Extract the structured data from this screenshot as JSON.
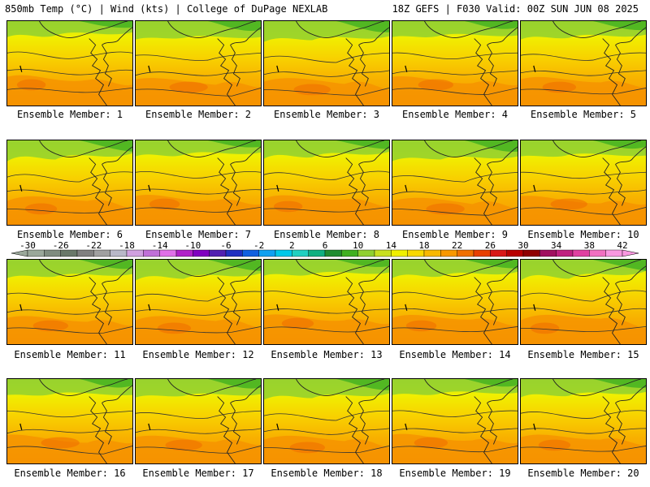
{
  "header": {
    "left_title": "850mb Temp (°C) | Wind (kts) | College of DuPage NEXLAB",
    "right_title": "18Z GEFS | F030 Valid: 00Z SUN JUN 08 2025"
  },
  "panels": [
    {
      "label": "Ensemble Member: 1"
    },
    {
      "label": "Ensemble Member: 2"
    },
    {
      "label": "Ensemble Member: 3"
    },
    {
      "label": "Ensemble Member: 4"
    },
    {
      "label": "Ensemble Member: 5"
    },
    {
      "label": "Ensemble Member: 6"
    },
    {
      "label": "Ensemble Member: 7"
    },
    {
      "label": "Ensemble Member: 8"
    },
    {
      "label": "Ensemble Member: 9"
    },
    {
      "label": "Ensemble Member: 10"
    },
    {
      "label": "Ensemble Member: 11"
    },
    {
      "label": "Ensemble Member: 12"
    },
    {
      "label": "Ensemble Member: 13"
    },
    {
      "label": "Ensemble Member: 14"
    },
    {
      "label": "Ensemble Member: 15"
    },
    {
      "label": "Ensemble Member: 16"
    },
    {
      "label": "Ensemble Member: 17"
    },
    {
      "label": "Ensemble Member: 18"
    },
    {
      "label": "Ensemble Member: 19"
    },
    {
      "label": "Ensemble Member: 20"
    }
  ],
  "colorbar": {
    "tick_labels": [
      "-30",
      "-26",
      "-22",
      "-18",
      "-14",
      "-10",
      "-6",
      "-2",
      "2",
      "6",
      "10",
      "14",
      "18",
      "22",
      "26",
      "30",
      "34",
      "38",
      "42"
    ],
    "colors": [
      "#9aa89a",
      "#7f8c7f",
      "#697869",
      "#808080",
      "#a0a0a0",
      "#b8b8c8",
      "#d0a0e0",
      "#c070d8",
      "#e070e8",
      "#b020c8",
      "#8000c0",
      "#5020b0",
      "#2030c0",
      "#1060e0",
      "#10a0f0",
      "#00c8e8",
      "#20d0c0",
      "#10b080",
      "#208c30",
      "#40b020",
      "#90d030",
      "#c8e020",
      "#f0f000",
      "#f8d800",
      "#f8b800",
      "#f89800",
      "#f07000",
      "#e84000",
      "#d81818",
      "#b80000",
      "#900000",
      "#a01060",
      "#c02080",
      "#e040a0",
      "#f070c0",
      "#f898e0"
    ]
  }
}
